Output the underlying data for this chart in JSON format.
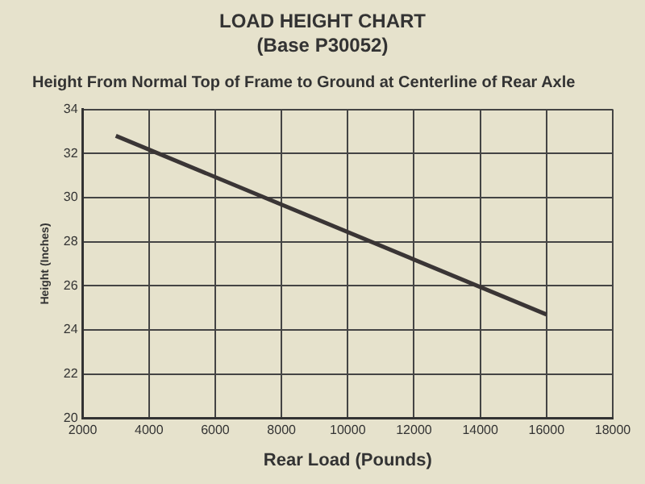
{
  "chart_data": {
    "type": "line",
    "title": "LOAD HEIGHT CHART",
    "subtitle": "(Base P30052)",
    "annotations": [
      "Height From Normal Top of Frame to Ground at Centerline of Rear Axle"
    ],
    "xlabel": "Rear Load (Pounds)",
    "ylabel": "Height (Inches)",
    "x": [
      3000,
      16000
    ],
    "series": [
      {
        "color": "#3a3535",
        "values": [
          32.8,
          24.7
        ]
      }
    ],
    "xlim": [
      2000,
      18000
    ],
    "xticks": [
      2000,
      4000,
      6000,
      8000,
      10000,
      12000,
      14000,
      16000,
      18000
    ],
    "ylim": [
      20,
      34
    ],
    "yticks": [
      20,
      22,
      24,
      26,
      28,
      30,
      32,
      34
    ],
    "grid": true,
    "legend": false,
    "marker": "none",
    "line_style": "solid"
  }
}
